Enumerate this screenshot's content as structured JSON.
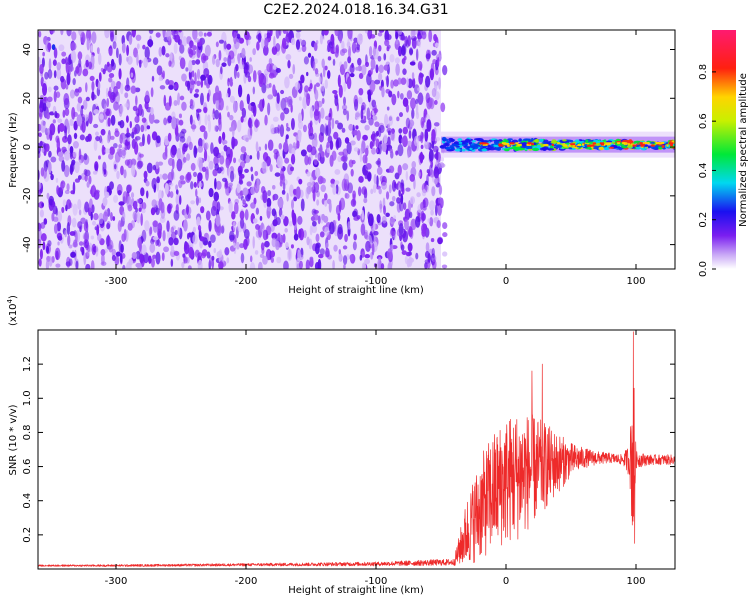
{
  "title": "C2E2.2024.018.16.34.G31",
  "colors": {
    "snr_line": "#ee2a2a",
    "spectrogram_noise": "#7a1ef0",
    "axis": "#000000"
  },
  "chart_data": [
    {
      "type": "heatmap",
      "panel": "spectrogram",
      "xlabel": "Height of straight line (km)",
      "ylabel": "Frequency (Hz)",
      "xlim": [
        -360,
        130
      ],
      "ylim": [
        -50,
        48
      ],
      "x_ticks": [
        "-300",
        "-200",
        "-100",
        "0",
        "100"
      ],
      "x_tick_values": [
        -300,
        -200,
        -100,
        0,
        100
      ],
      "y_ticks": [
        "-40",
        "-20",
        "0",
        "20",
        "40"
      ],
      "y_tick_values": [
        -40,
        -20,
        0,
        20,
        40
      ],
      "noise_region_x": [
        -360,
        -50
      ],
      "signal_region_x": [
        -50,
        130
      ],
      "signal_frequency_hz": 1,
      "colorbar": {
        "label": "Normalized spectral amplitude",
        "ticks": [
          "0.0",
          "0.2",
          "0.4",
          "0.6",
          "0.8"
        ],
        "tick_values": [
          0.0,
          0.2,
          0.4,
          0.6,
          0.8
        ],
        "range": [
          0,
          0.97
        ],
        "colormap": "rainbow (white-purple-blue-cyan-green-yellow-red-magenta)"
      }
    },
    {
      "type": "line",
      "panel": "snr",
      "xlabel": "Height of straight line (km)",
      "ylabel": "SNR (10 * v/v)",
      "y_multiplier_label": "(x10",
      "y_multiplier_exp": "4",
      "y_multiplier_close": ")",
      "xlim": [
        -360,
        130
      ],
      "ylim": [
        0,
        1.4
      ],
      "x_ticks": [
        "-300",
        "-200",
        "-100",
        "0",
        "100"
      ],
      "x_tick_values": [
        -300,
        -200,
        -100,
        0,
        100
      ],
      "y_ticks": [
        "0.2",
        "0.4",
        "0.6",
        "0.8",
        "1.0",
        "1.2"
      ],
      "y_tick_values": [
        0.2,
        0.4,
        0.6,
        0.8,
        1.0,
        1.2
      ],
      "series": [
        {
          "envelope_x": [
            -360,
            -300,
            -200,
            -100,
            -40,
            -30,
            -20,
            -10,
            0,
            10,
            20,
            30,
            40,
            50,
            60,
            70,
            80,
            90,
            95,
            98,
            100,
            110,
            120,
            130
          ],
          "envelope_mean": [
            0.02,
            0.02,
            0.025,
            0.03,
            0.04,
            0.22,
            0.35,
            0.45,
            0.52,
            0.55,
            0.58,
            0.6,
            0.62,
            0.64,
            0.65,
            0.65,
            0.65,
            0.64,
            0.64,
            0.64,
            0.64,
            0.64,
            0.64,
            0.64
          ],
          "envelope_amp": [
            0.005,
            0.006,
            0.008,
            0.012,
            0.02,
            0.2,
            0.3,
            0.35,
            0.38,
            0.38,
            0.33,
            0.26,
            0.18,
            0.1,
            0.06,
            0.04,
            0.03,
            0.03,
            0.1,
            0.6,
            0.05,
            0.03,
            0.03,
            0.03
          ],
          "peaks": [
            {
              "x": 20,
              "y": 1.16
            },
            {
              "x": 28,
              "y": 1.2
            },
            {
              "x": 98,
              "y": 1.39
            },
            {
              "x": 99,
              "y": 0.15
            }
          ]
        }
      ]
    }
  ]
}
